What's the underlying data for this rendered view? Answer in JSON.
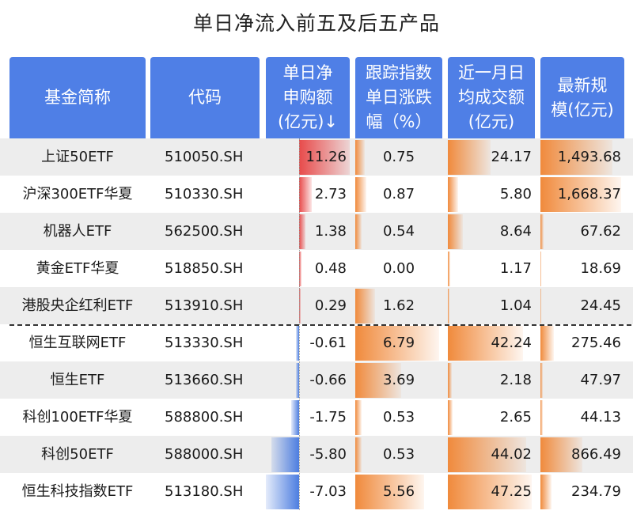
{
  "title": "单日净流入前五及后五产品",
  "headers": {
    "name": "基金简称",
    "code": "代码",
    "flow": "单日净申购额(亿元)↓",
    "change": "跟踪指数单日涨跌幅（%）",
    "turnover": "近一月日均成交额(亿元)",
    "scale": "最新规模(亿元)"
  },
  "colors": {
    "header_bg": "#4f7fe6",
    "inflow_bar": "#e84a4a",
    "outflow_bar": "#4c7de0",
    "orange_bar": "#f08a3c",
    "row_shade": "#ededed"
  },
  "chart_data": {
    "type": "table",
    "columns": [
      "基金简称",
      "代码",
      "单日净申购额(亿元)↓",
      "跟踪指数单日涨跌幅（%）",
      "近一月日均成交额(亿元)",
      "最新规模(亿元)"
    ],
    "rows": [
      {
        "name": "上证50ETF",
        "code": "510050.SH",
        "flow": 11.26,
        "flow_text": "11.26",
        "change": 0.75,
        "change_text": "0.75",
        "turnover": 24.17,
        "turnover_text": "24.17",
        "scale": 1493.68,
        "scale_text": "1,493.68"
      },
      {
        "name": "沪深300ETF华夏",
        "code": "510330.SH",
        "flow": 2.73,
        "flow_text": "2.73",
        "change": 0.87,
        "change_text": "0.87",
        "turnover": 5.8,
        "turnover_text": "5.80",
        "scale": 1668.37,
        "scale_text": "1,668.37"
      },
      {
        "name": "机器人ETF",
        "code": "562500.SH",
        "flow": 1.38,
        "flow_text": "1.38",
        "change": 0.54,
        "change_text": "0.54",
        "turnover": 8.64,
        "turnover_text": "8.64",
        "scale": 67.62,
        "scale_text": "67.62"
      },
      {
        "name": "黄金ETF华夏",
        "code": "518850.SH",
        "flow": 0.48,
        "flow_text": "0.48",
        "change": 0.0,
        "change_text": "0.00",
        "turnover": 1.17,
        "turnover_text": "1.17",
        "scale": 18.69,
        "scale_text": "18.69"
      },
      {
        "name": "港股央企红利ETF",
        "code": "513910.SH",
        "flow": 0.29,
        "flow_text": "0.29",
        "change": 1.62,
        "change_text": "1.62",
        "turnover": 1.04,
        "turnover_text": "1.04",
        "scale": 24.45,
        "scale_text": "24.45"
      },
      {
        "name": "恒生互联网ETF",
        "code": "513330.SH",
        "flow": -0.61,
        "flow_text": "-0.61",
        "change": 6.79,
        "change_text": "6.79",
        "turnover": 42.24,
        "turnover_text": "42.24",
        "scale": 275.46,
        "scale_text": "275.46"
      },
      {
        "name": "恒生ETF",
        "code": "513660.SH",
        "flow": -0.66,
        "flow_text": "-0.66",
        "change": 3.69,
        "change_text": "3.69",
        "turnover": 2.18,
        "turnover_text": "2.18",
        "scale": 47.97,
        "scale_text": "47.97"
      },
      {
        "name": "科创100ETF华夏",
        "code": "588800.SH",
        "flow": -1.75,
        "flow_text": "-1.75",
        "change": 0.53,
        "change_text": "0.53",
        "turnover": 2.65,
        "turnover_text": "2.65",
        "scale": 44.13,
        "scale_text": "44.13"
      },
      {
        "name": "科创50ETF",
        "code": "588000.SH",
        "flow": -5.8,
        "flow_text": "-5.80",
        "change": 0.53,
        "change_text": "0.53",
        "turnover": 44.02,
        "turnover_text": "44.02",
        "scale": 866.49,
        "scale_text": "866.49"
      },
      {
        "name": "恒生科技指数ETF",
        "code": "513180.SH",
        "flow": -7.03,
        "flow_text": "-7.03",
        "change": 5.56,
        "change_text": "5.56",
        "turnover": 47.25,
        "turnover_text": "47.25",
        "scale": 234.79,
        "scale_text": "234.79"
      }
    ]
  }
}
